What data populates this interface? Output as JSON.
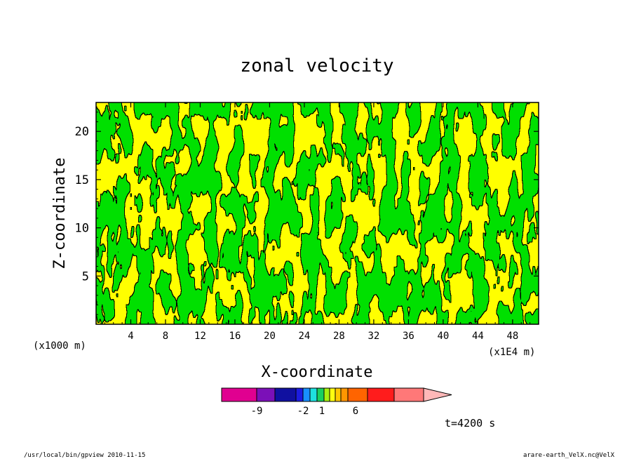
{
  "chart_data": {
    "type": "heatmap",
    "title": "zonal velocity",
    "xlabel": "X-coordinate",
    "ylabel": "Z-coordinate",
    "x_unit": "(x1E4 m)",
    "y_unit": "(x1000 m)",
    "xlim": [
      0,
      51
    ],
    "ylim": [
      0,
      23
    ],
    "x_ticks": [
      "4",
      "8",
      "12",
      "16",
      "20",
      "24",
      "28",
      "32",
      "36",
      "40",
      "44",
      "48"
    ],
    "y_ticks": [
      "5",
      "10",
      "15",
      "20"
    ],
    "colorbar": {
      "labels": [
        "-9",
        "-2",
        "1",
        "6"
      ],
      "colors": [
        "#e00090",
        "#7b10b8",
        "#1010a0",
        "#1c1ce0",
        "#1890ff",
        "#1ee0e0",
        "#18d060",
        "#a8f010",
        "#ffff10",
        "#ffc800",
        "#ff9600",
        "#ff6400",
        "#ff1c1c",
        "#ff7878",
        "#ffb8b8"
      ]
    },
    "field_colors": {
      "positive": "#ffff00",
      "negative": "#00e000",
      "contour": "#000000"
    },
    "annotation": "t=4200 s",
    "grid": false,
    "legend": "colorbar-bottom"
  },
  "footer": {
    "left": "/usr/local/bin/gpview  2010-11-15",
    "right": "arare-earth_VelX.nc@VelX"
  }
}
